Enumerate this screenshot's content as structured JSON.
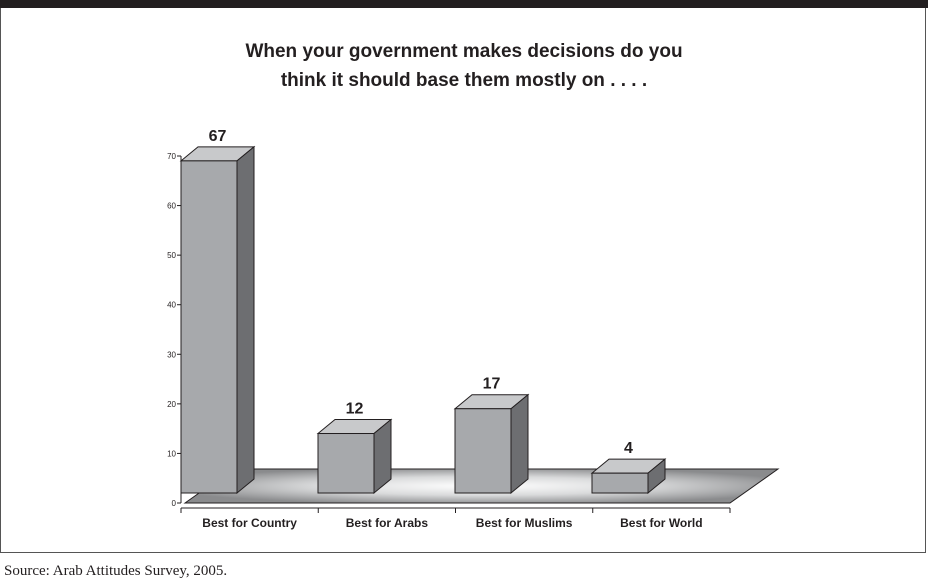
{
  "chart_data": {
    "type": "bar",
    "title_lines": [
      "When your government makes decisions do you",
      "think it should base them mostly on . . . ."
    ],
    "categories": [
      "Best for Country",
      "Best for Arabs",
      "Best for Muslims",
      "Best for World"
    ],
    "values": [
      67,
      12,
      17,
      4
    ],
    "yticks": [
      "0",
      "10",
      "20",
      "30",
      "40",
      "50",
      "60",
      "70"
    ],
    "ylim": [
      0,
      70
    ],
    "grid": false,
    "style": "3d-bar",
    "colors": {
      "front": "#a7a9ac",
      "side": "#6d6e71",
      "top": "#c8c9cb"
    }
  },
  "source": "Source: Arab Attitudes Survey, 2005."
}
